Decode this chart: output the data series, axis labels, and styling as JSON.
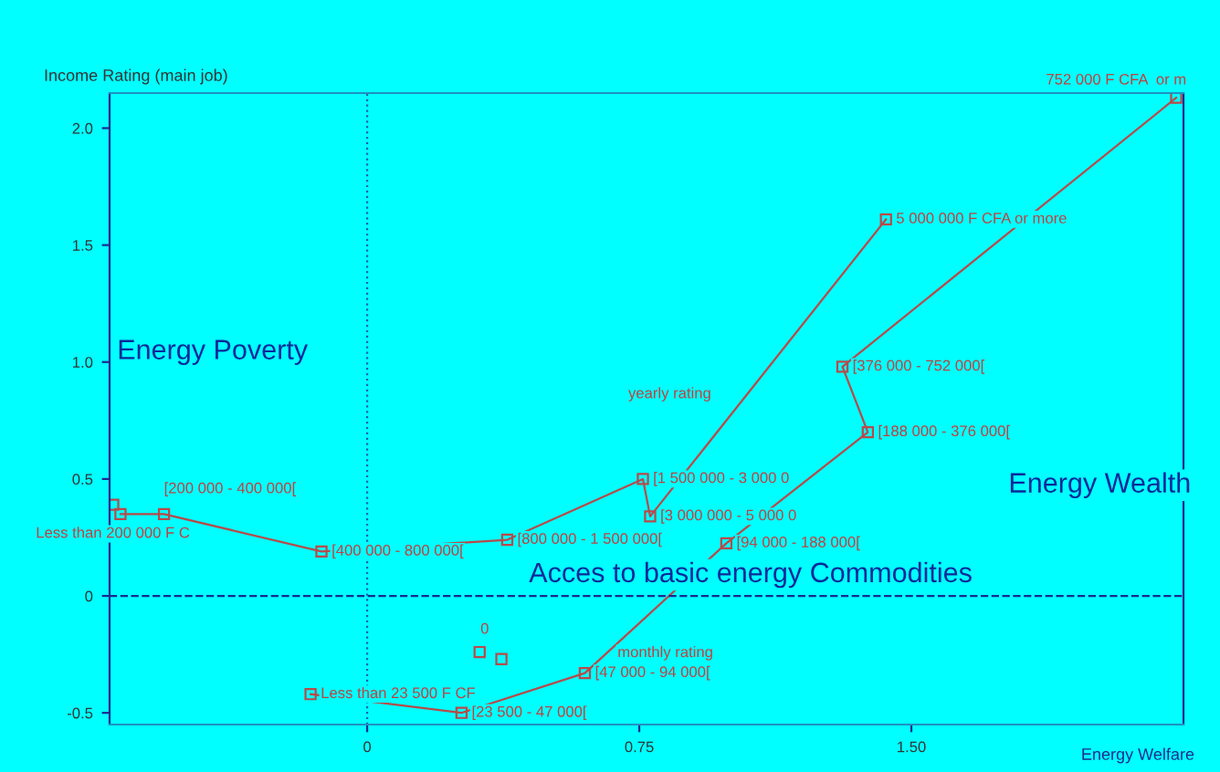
{
  "chart_data": {
    "type": "line",
    "xlabel": "Energy Welfare",
    "ylabel": "Income Rating (main job)",
    "xlim": [
      -0.71,
      2.25
    ],
    "ylim": [
      -0.55,
      2.15
    ],
    "xticks": [
      0,
      0.75,
      {
        "value": 1.5,
        "label": "1.50"
      }
    ],
    "yticks": [
      {
        "value": -0.5,
        "label": "-0.5"
      },
      0,
      0.5,
      {
        "value": 1.0,
        "label": "1.0"
      },
      1.5,
      {
        "value": 2.0,
        "label": "2.0"
      }
    ],
    "marker": "square",
    "grid": false,
    "legend": false,
    "series": [
      {
        "name": "yearly rating",
        "color": "#b84a4a",
        "x": [
          -0.68,
          -0.56,
          -0.126,
          0.386,
          0.76,
          0.78,
          1.43
        ],
        "values": [
          0.35,
          0.35,
          0.19,
          0.24,
          0.5,
          0.34,
          1.61
        ]
      },
      {
        "name": "monthly rating",
        "color": "#b84a4a",
        "x": [
          -0.156,
          0.26,
          0.6,
          0.99,
          1.38,
          1.31,
          2.23
        ],
        "values": [
          -0.42,
          -0.5,
          -0.33,
          0.225,
          0.7,
          0.98,
          2.13
        ]
      },
      {
        "type": "scatter",
        "color": "#b84a4a",
        "x": [
          0.31,
          0.37,
          -0.7
        ],
        "values": [
          -0.24,
          -0.27,
          0.39
        ]
      }
    ],
    "ref_lines": [
      {
        "axis": "x",
        "value": 0,
        "color": "#2060b0",
        "line_style": "dotted"
      },
      {
        "axis": "y",
        "value": 0,
        "color": "#1a2a90",
        "line_style": "dashed"
      }
    ],
    "annotations": [
      {
        "text": "Less than 200 000 F C",
        "x": -0.68,
        "y": 0.35
      },
      {
        "text": "[200 000 - 400 000[",
        "x": -0.56,
        "y": 0.35
      },
      {
        "text": "[400 000 - 800 000[",
        "x": -0.126,
        "y": 0.19
      },
      {
        "text": "[800 000 - 1 500 000[",
        "x": 0.386,
        "y": 0.24
      },
      {
        "text": "[1 500 000 - 3 000 0",
        "x": 0.76,
        "y": 0.5
      },
      {
        "text": "[3 000 000 - 5 000 0",
        "x": 0.78,
        "y": 0.34
      },
      {
        "text": "5 000 000 F CFA or more",
        "x": 1.43,
        "y": 1.61
      },
      {
        "text": "Less than 23 500 F CF",
        "x": -0.156,
        "y": -0.42
      },
      {
        "text": "[23 500 - 47 000[",
        "x": 0.26,
        "y": -0.5
      },
      {
        "text": "[47 000 - 94 000[",
        "x": 0.6,
        "y": -0.33
      },
      {
        "text": "[94 000 - 188 000[",
        "x": 0.99,
        "y": 0.225
      },
      {
        "text": "[188 000 - 376 000[",
        "x": 1.38,
        "y": 0.7
      },
      {
        "text": "[376 000 - 752 000[",
        "x": 1.31,
        "y": 0.98
      },
      {
        "text": "752 000 F CFA  or m",
        "x": 2.23,
        "y": 2.13
      },
      {
        "text": "0",
        "x": 0.31,
        "y": -0.24
      },
      "Energy Poverty",
      "Energy Wealth",
      "Acces to basic energy Commodities"
    ]
  }
}
